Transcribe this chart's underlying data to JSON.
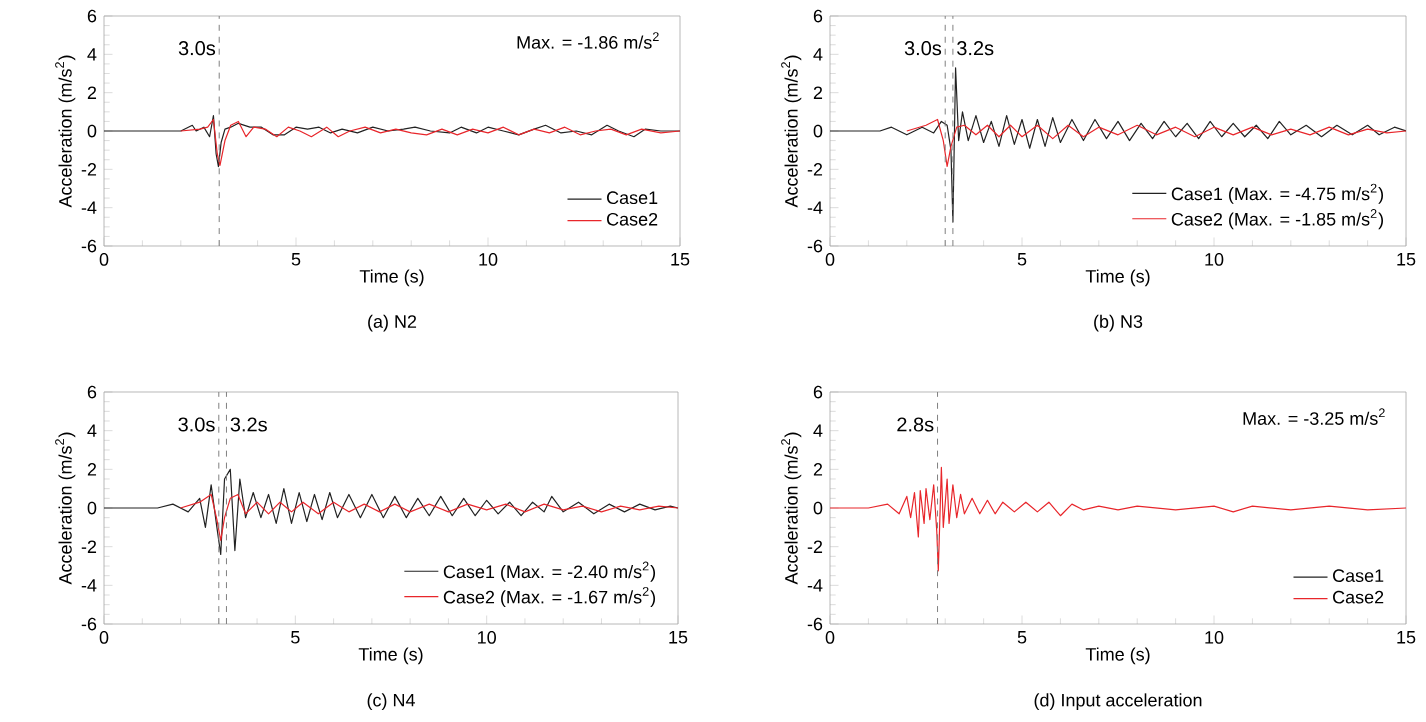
{
  "chart_data": [
    {
      "type": "line",
      "title": "(a) N2",
      "xlabel": "Time (s)",
      "ylabel": "Acceleration (m/s$^{2}$)",
      "xlim": [
        0,
        15
      ],
      "ylim": [
        -6,
        6
      ],
      "xticks": [
        0,
        5,
        10,
        15
      ],
      "yticks": [
        -6,
        -4,
        -2,
        0,
        2,
        4,
        6
      ],
      "legend": "bottom right",
      "ref_lines": [
        {
          "axis": "x",
          "value": 3.0,
          "label": "3.0s",
          "color": "#808080",
          "line_style": "dashed"
        }
      ],
      "annotations": [
        "Max. = -1.86 m/s$^{2}$"
      ],
      "series": [
        {
          "name": "Case1",
          "color": "#222222",
          "x": [
            0,
            1,
            2,
            2.3,
            2.4,
            2.6,
            2.75,
            2.85,
            2.92,
            2.98,
            3.05,
            3.15,
            3.3,
            3.5,
            3.8,
            4.1,
            4.4,
            4.7,
            5.0,
            5.3,
            5.6,
            5.9,
            6.2,
            6.6,
            7.0,
            7.4,
            7.8,
            8.1,
            8.5,
            9.0,
            9.3,
            9.7,
            10.0,
            10.4,
            10.8,
            11.2,
            11.5,
            11.9,
            12.3,
            12.7,
            13.1,
            13.4,
            13.8,
            14.1,
            14.5,
            15
          ],
          "values": [
            0,
            0,
            0,
            0.3,
            0,
            0.2,
            -0.3,
            0.8,
            -1.2,
            -1.86,
            -0.6,
            0.1,
            0.2,
            0.4,
            0.2,
            0.2,
            -0.2,
            -0.2,
            0.2,
            0.1,
            0.2,
            -0.1,
            0.1,
            -0.1,
            0.2,
            0,
            0.1,
            0.2,
            0,
            -0.1,
            0.2,
            -0.1,
            0.2,
            0,
            -0.2,
            0.1,
            0.3,
            -0.1,
            0,
            -0.2,
            0.3,
            0,
            -0.3,
            0.1,
            0,
            0
          ]
        },
        {
          "name": "Case2",
          "color": "#e8262b",
          "x": [
            2,
            2.5,
            2.7,
            2.85,
            2.95,
            3.02,
            3.15,
            3.3,
            3.5,
            3.7,
            3.9,
            4.2,
            4.5,
            4.8,
            5.1,
            5.4,
            5.8,
            6.1,
            6.4,
            6.8,
            7.2,
            7.6,
            8.0,
            8.4,
            8.8,
            9.2,
            9.6,
            10,
            10.4,
            10.8,
            11.2,
            11.6,
            12,
            12.4,
            12.8,
            13.2,
            13.6,
            14,
            14.5,
            15
          ],
          "values": [
            0,
            0.1,
            0.2,
            0.6,
            -1.2,
            -1.8,
            -0.5,
            0.3,
            0.5,
            -0.3,
            0.2,
            0.1,
            -0.3,
            0.2,
            0,
            -0.3,
            0.2,
            -0.3,
            0,
            0.2,
            -0.1,
            0.1,
            -0.1,
            -0.2,
            0.1,
            -0.2,
            0.1,
            -0.1,
            0.2,
            -0.2,
            0.1,
            -0.1,
            0.2,
            -0.2,
            0,
            0.1,
            -0.2,
            0.1,
            -0.1,
            0
          ]
        }
      ]
    },
    {
      "type": "line",
      "title": "(b) N3",
      "xlabel": "Time (s)",
      "ylabel": "Acceleration (m/s$^{2}$)",
      "xlim": [
        0,
        15
      ],
      "ylim": [
        -6,
        6
      ],
      "xticks": [
        0,
        5,
        10,
        15
      ],
      "yticks": [
        -6,
        -4,
        -2,
        0,
        2,
        4,
        6
      ],
      "legend": "bottom right",
      "ref_lines": [
        {
          "axis": "x",
          "value": 3.0,
          "label": "3.0s",
          "color": "#808080",
          "line_style": "dashed"
        },
        {
          "axis": "x",
          "value": 3.2,
          "label": "3.2s",
          "color": "#808080",
          "line_style": "dashed"
        }
      ],
      "series": [
        {
          "name": "Case1 (Max. = -4.75 m/s$^{2}$)",
          "color": "#222222",
          "x": [
            0,
            1.3,
            1.6,
            2.0,
            2.4,
            2.7,
            2.9,
            3.05,
            3.15,
            3.2,
            3.27,
            3.35,
            3.45,
            3.6,
            3.8,
            4.0,
            4.2,
            4.4,
            4.6,
            4.8,
            5.0,
            5.2,
            5.4,
            5.6,
            5.8,
            6.0,
            6.3,
            6.6,
            6.9,
            7.2,
            7.5,
            7.8,
            8.1,
            8.4,
            8.7,
            9.0,
            9.3,
            9.6,
            9.9,
            10.2,
            10.5,
            10.8,
            11.1,
            11.4,
            11.7,
            12.0,
            12.4,
            12.8,
            13.2,
            13.6,
            14.0,
            14.3,
            14.7,
            15
          ],
          "values": [
            0,
            0,
            0.2,
            -0.2,
            0.2,
            -0.1,
            0.5,
            0.3,
            -1.0,
            -4.75,
            3.3,
            -0.5,
            1.0,
            -0.5,
            0.8,
            -0.6,
            0.5,
            -0.8,
            0.8,
            -0.7,
            0.6,
            -0.9,
            0.6,
            -0.8,
            0.7,
            -0.6,
            0.6,
            -0.5,
            0.6,
            -0.4,
            0.5,
            -0.5,
            0.4,
            -0.4,
            0.5,
            -0.3,
            0.4,
            -0.4,
            0.5,
            -0.3,
            0.4,
            -0.3,
            0.3,
            -0.4,
            0.5,
            -0.2,
            0.3,
            -0.3,
            0.3,
            -0.2,
            0.3,
            -0.2,
            0.2,
            0
          ]
        },
        {
          "name": "Case2 (Max. = -1.85 m/s$^{2}$)",
          "color": "#e8262b",
          "x": [
            2.0,
            2.5,
            2.8,
            2.95,
            3.05,
            3.15,
            3.3,
            3.5,
            3.8,
            4.1,
            4.4,
            4.7,
            5.0,
            5.4,
            5.8,
            6.2,
            6.6,
            7.0,
            7.5,
            8.0,
            8.5,
            9.0,
            9.5,
            10,
            10.5,
            11,
            11.5,
            12,
            12.5,
            13,
            13.5,
            14,
            14.5,
            15
          ],
          "values": [
            0,
            0.3,
            0.6,
            -0.5,
            -1.85,
            -0.8,
            0.2,
            0.3,
            -0.2,
            0.3,
            -0.3,
            0.3,
            -0.3,
            0.3,
            -0.4,
            0.3,
            -0.3,
            0.2,
            -0.2,
            0.3,
            -0.2,
            0.2,
            -0.3,
            0.2,
            -0.2,
            0.2,
            -0.2,
            0.1,
            -0.2,
            0.2,
            -0.2,
            0.1,
            -0.1,
            0
          ]
        }
      ]
    },
    {
      "type": "line",
      "title": "(c) N4",
      "xlabel": "Time (s)",
      "ylabel": "Acceleration (m/s$^{2}$)",
      "xlim": [
        0,
        15
      ],
      "ylim": [
        -6,
        6
      ],
      "xticks": [
        0,
        5,
        10,
        15
      ],
      "yticks": [
        -6,
        -4,
        -2,
        0,
        2,
        4,
        6
      ],
      "legend": "bottom right",
      "ref_lines": [
        {
          "axis": "x",
          "value": 3.0,
          "label": "3.0s",
          "color": "#808080",
          "line_style": "dashed"
        },
        {
          "axis": "x",
          "value": 3.2,
          "label": "3.2s",
          "color": "#808080",
          "line_style": "dashed"
        }
      ],
      "series": [
        {
          "name": "Case1 (Max. = -2.40 m/s$^{2}$)",
          "color": "#222222",
          "x": [
            0,
            1.4,
            1.8,
            2.2,
            2.5,
            2.65,
            2.8,
            2.95,
            3.05,
            3.15,
            3.3,
            3.42,
            3.55,
            3.7,
            3.9,
            4.1,
            4.3,
            4.5,
            4.7,
            4.9,
            5.1,
            5.3,
            5.5,
            5.7,
            5.9,
            6.1,
            6.4,
            6.7,
            7.0,
            7.3,
            7.6,
            7.9,
            8.2,
            8.5,
            8.8,
            9.1,
            9.4,
            9.7,
            10.0,
            10.3,
            10.6,
            10.9,
            11.2,
            11.5,
            11.7,
            12.0,
            12.4,
            12.8,
            13.2,
            13.6,
            14.0,
            14.4,
            14.8,
            15
          ],
          "values": [
            0,
            0,
            0.2,
            -0.2,
            0.5,
            -1.0,
            1.2,
            -1.0,
            -2.4,
            1.5,
            2.0,
            -2.2,
            1.5,
            -0.5,
            0.8,
            -0.5,
            0.7,
            -0.8,
            1.0,
            -0.8,
            0.8,
            -0.7,
            0.7,
            -0.6,
            0.8,
            -0.5,
            0.7,
            -0.5,
            0.7,
            -0.5,
            0.6,
            -0.5,
            0.5,
            -0.4,
            0.6,
            -0.4,
            0.5,
            -0.4,
            0.4,
            -0.3,
            0.3,
            -0.4,
            0.3,
            -0.2,
            0.6,
            -0.2,
            0.3,
            -0.3,
            0.2,
            -0.2,
            0.2,
            -0.1,
            0.1,
            0
          ]
        },
        {
          "name": "Case2 (Max. = -1.67 m/s$^{2}$)",
          "color": "#e8262b",
          "x": [
            2.0,
            2.5,
            2.8,
            2.95,
            3.05,
            3.15,
            3.3,
            3.5,
            3.7,
            4.0,
            4.3,
            4.6,
            4.9,
            5.2,
            5.6,
            6.0,
            6.4,
            6.8,
            7.2,
            7.6,
            8.0,
            8.5,
            9.0,
            9.5,
            10,
            10.5,
            11,
            11.5,
            12,
            12.5,
            13,
            13.5,
            14,
            14.5,
            15
          ],
          "values": [
            0,
            0.3,
            0.7,
            -0.6,
            -1.67,
            -0.5,
            0.5,
            0.7,
            -0.3,
            0.3,
            -0.3,
            0.3,
            -0.2,
            0.3,
            -0.3,
            0.3,
            -0.2,
            0.2,
            -0.2,
            0.2,
            -0.2,
            0.2,
            -0.2,
            0.2,
            -0.1,
            0.2,
            -0.2,
            0.2,
            -0.1,
            0.1,
            -0.2,
            0.1,
            -0.1,
            0.1,
            0
          ]
        }
      ]
    },
    {
      "type": "line",
      "title": "(d) Input acceleration",
      "xlabel": "Time (s)",
      "ylabel": "Acceleration (m/s$^{2}$)",
      "xlim": [
        0,
        15
      ],
      "ylim": [
        -6,
        6
      ],
      "xticks": [
        0,
        5,
        10,
        15
      ],
      "yticks": [
        -6,
        -4,
        -2,
        0,
        2,
        4,
        6
      ],
      "legend": "bottom right",
      "ref_lines": [
        {
          "axis": "x",
          "value": 2.8,
          "label": "2.8s",
          "color": "#808080",
          "line_style": "dashed"
        }
      ],
      "annotations": [
        "Max. = -3.25 m/s$^{2}$"
      ],
      "series": [
        {
          "name": "Case1",
          "color": "#222222"
        },
        {
          "name": "Case2",
          "color": "#e8262b",
          "x": [
            0,
            1.0,
            1.5,
            1.8,
            2.0,
            2.1,
            2.2,
            2.3,
            2.35,
            2.45,
            2.5,
            2.6,
            2.7,
            2.78,
            2.82,
            2.9,
            2.95,
            3.05,
            3.1,
            3.2,
            3.3,
            3.4,
            3.5,
            3.7,
            3.9,
            4.1,
            4.3,
            4.5,
            4.8,
            5.1,
            5.4,
            5.7,
            6.0,
            6.3,
            6.6,
            7.0,
            7.5,
            8,
            9,
            10,
            10.5,
            11,
            12,
            13,
            14,
            15
          ],
          "values": [
            0,
            0,
            0.2,
            -0.3,
            0.6,
            -0.5,
            0.8,
            -1.5,
            0.9,
            -0.8,
            1.0,
            -0.6,
            1.2,
            -1.2,
            -3.25,
            2.1,
            -1.0,
            1.5,
            -0.8,
            1.2,
            -0.5,
            0.7,
            -0.3,
            0.5,
            -0.3,
            0.4,
            -0.3,
            0.3,
            -0.2,
            0.3,
            -0.2,
            0.3,
            -0.4,
            0.2,
            -0.1,
            0.1,
            -0.1,
            0.1,
            -0.1,
            0.1,
            -0.2,
            0.1,
            -0.1,
            0.1,
            -0.1,
            0
          ]
        }
      ]
    }
  ]
}
